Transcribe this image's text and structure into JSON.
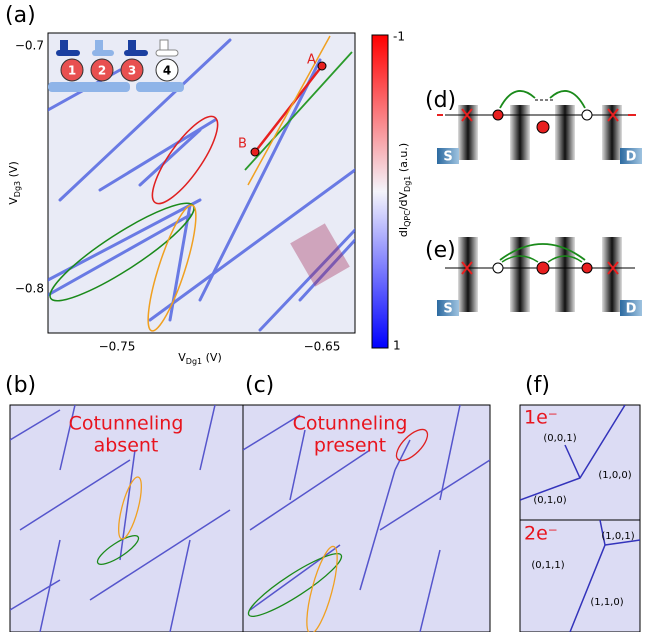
{
  "panel_a": {
    "label": "(a)",
    "xticks": [
      "−0.75",
      "−0.65"
    ],
    "yticks": [
      "−0.7",
      "−0.8"
    ],
    "x_label": {
      "main": "V",
      "sub": "Dg1",
      "unit": " (V)"
    },
    "y_label": {
      "main": "V",
      "sub": "Dg3",
      "unit": " (V)"
    },
    "colorbar_label": {
      "a": "dI",
      "b": "QPC",
      "c": "/dV",
      "d": "Dg1",
      "e": " (a.u.)"
    },
    "colorbar_ticks": [
      "-1",
      "1"
    ],
    "points": [
      "A",
      "B"
    ],
    "dots": [
      "1",
      "2",
      "3",
      "4"
    ]
  },
  "panel_b": {
    "label": "(b)",
    "text": [
      "Cotunneling",
      "absent"
    ]
  },
  "panel_c": {
    "label": "(c)",
    "text": [
      "Cotunneling",
      "present"
    ]
  },
  "panel_d": {
    "label": "(d)",
    "source": "S",
    "drain": "D"
  },
  "panel_e": {
    "label": "(e)",
    "source": "S",
    "drain": "D"
  },
  "panel_f": {
    "label": "(f)",
    "top": {
      "title": "1e⁻",
      "states": [
        "(0,0,1)",
        "(1,0,0)",
        "(0,1,0)"
      ]
    },
    "bottom": {
      "title": "2e⁻",
      "states": [
        "(1,0,1)",
        "(0,1,1)",
        "(1,1,0)"
      ]
    }
  }
}
